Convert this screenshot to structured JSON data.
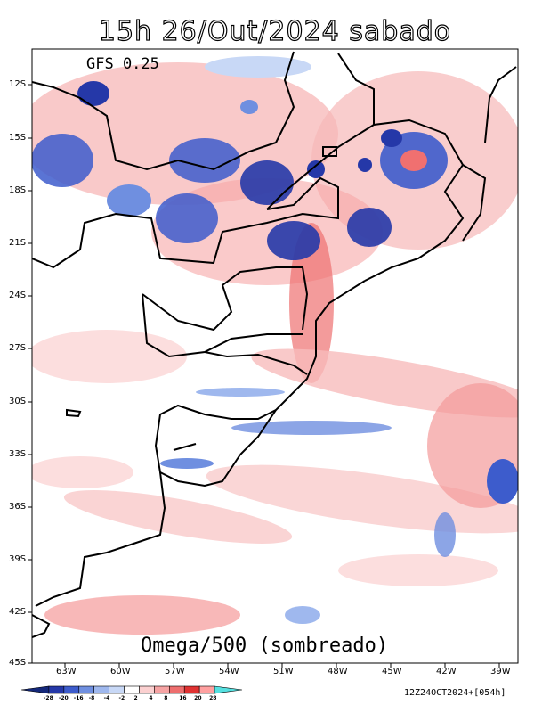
{
  "title": "15h 26/Out/2024 sabado",
  "model": "GFS 0.25",
  "field_label": "Omega/500 (sombreado)",
  "run_label": "12Z24OCT2024+[054h]",
  "lat_labels": [
    "12S",
    "15S",
    "18S",
    "21S",
    "24S",
    "27S",
    "30S",
    "33S",
    "36S",
    "39S",
    "42S",
    "45S"
  ],
  "lon_labels": [
    "63W",
    "60W",
    "57W",
    "54W",
    "51W",
    "48W",
    "45W",
    "42W",
    "39W"
  ],
  "colorbar": {
    "labels": [
      "-28",
      "-20",
      "-16",
      "-8",
      "-4",
      "-2",
      "2",
      "4",
      "8",
      "16",
      "20",
      "28"
    ],
    "colors": [
      "#14287a",
      "#2538a8",
      "#3d5ccc",
      "#6f8fe0",
      "#9fb8ee",
      "#c8d8f6",
      "#ffffff",
      "#fbd0d0",
      "#f6a3a3",
      "#ee6e6e",
      "#e03232",
      "#ffa0a0",
      "#55e0e0"
    ]
  }
}
